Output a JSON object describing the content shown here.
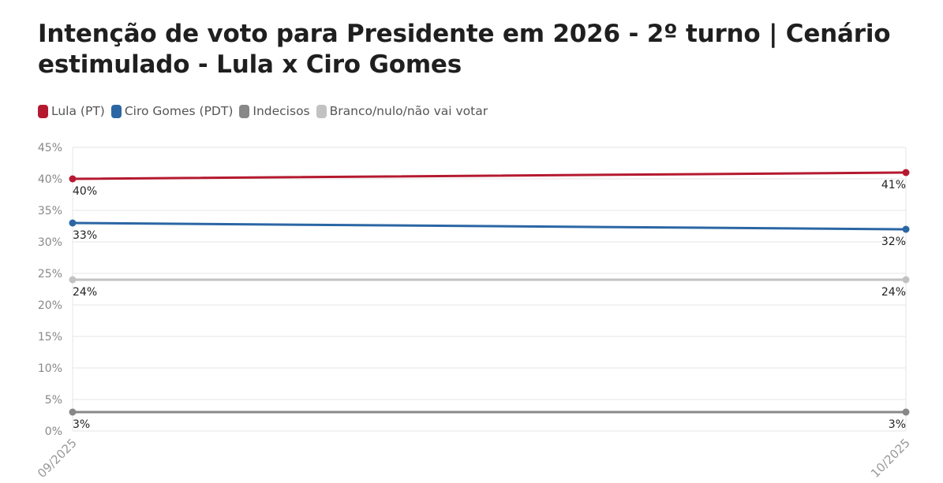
{
  "chart_data": {
    "type": "line",
    "title": "Intenção de voto para Presidente em 2026 - 2º turno | Cenário estimulado - Lula x Ciro Gomes",
    "x": [
      "09/2025",
      "10/2025"
    ],
    "ylim": [
      0,
      45
    ],
    "yticks": [
      0,
      5,
      10,
      15,
      20,
      25,
      30,
      35,
      40,
      45
    ],
    "ytick_labels": [
      "0%",
      "5%",
      "10%",
      "15%",
      "20%",
      "25%",
      "30%",
      "35%",
      "40%",
      "45%"
    ],
    "grid": true,
    "legend_position": "top-left",
    "series": [
      {
        "name": "Lula (PT)",
        "color": "#b5192f",
        "values": [
          40,
          41
        ],
        "labels": [
          "40%",
          "41%"
        ]
      },
      {
        "name": "Ciro Gomes (PDT)",
        "color": "#2b66a4",
        "values": [
          33,
          32
        ],
        "labels": [
          "33%",
          "32%"
        ]
      },
      {
        "name": "Indecisos",
        "color": "#888888",
        "values": [
          3,
          3
        ],
        "labels": [
          "3%",
          "3%"
        ]
      },
      {
        "name": "Branco/nulo/não vai votar",
        "color": "#c2c2c2",
        "values": [
          24,
          24
        ],
        "labels": [
          "24%",
          "24%"
        ]
      }
    ]
  }
}
